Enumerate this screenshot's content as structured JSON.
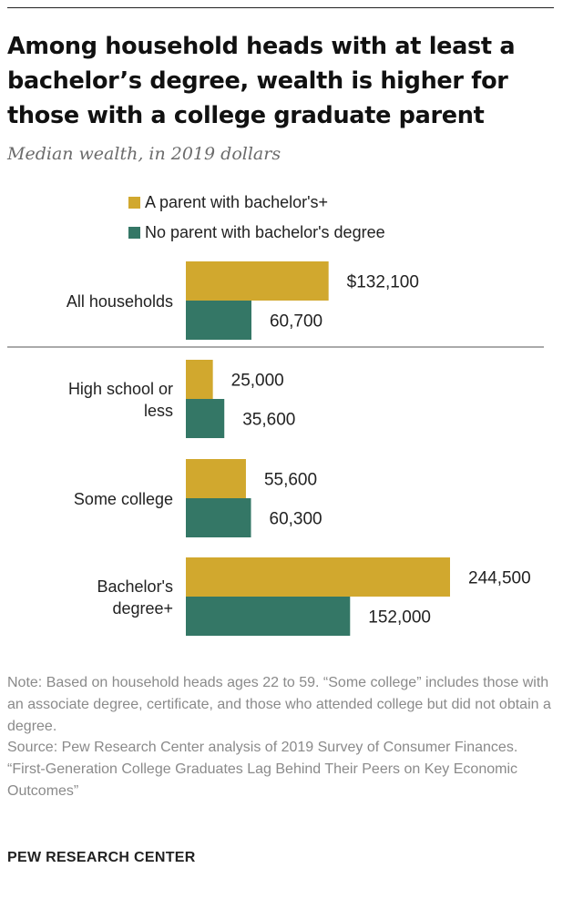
{
  "title": "Among household heads with at least a bachelor’s degree, wealth is higher for those with a college graduate parent",
  "subtitle": "Median wealth, in 2019 dollars",
  "colors": {
    "parent_ba": "#d1a82e",
    "no_parent_ba": "#347766",
    "separator": "#aaaaaa"
  },
  "chart_data": {
    "type": "bar",
    "orientation": "horizontal",
    "categories": [
      [
        "All households"
      ],
      [
        "High school or",
        "less"
      ],
      [
        "Some college"
      ],
      [
        "Bachelor's",
        "degree+"
      ]
    ],
    "series": [
      {
        "name": "A parent with bachelor's+",
        "values": [
          132100,
          25000,
          55600,
          244500
        ],
        "labels": [
          "$132,100",
          "25,000",
          "55,600",
          "244,500"
        ]
      },
      {
        "name": "No parent with bachelor's degree",
        "values": [
          60700,
          35600,
          60300,
          152000
        ],
        "labels": [
          "60,700",
          "35,600",
          "60,300",
          "152,000"
        ]
      }
    ],
    "xlim": [
      0,
      244500
    ],
    "grid": false,
    "legend_position": "top-left"
  },
  "notes": [
    "Note: Based on household heads ages 22 to 59. “Some college” includes those with an associate degree, certificate, and those who attended college but did not obtain a degree.",
    "Source: Pew Research Center analysis of 2019 Survey of Consumer Finances.",
    "“First-Generation College Graduates Lag Behind Their Peers on Key Economic Outcomes”"
  ],
  "footer": "PEW RESEARCH CENTER"
}
